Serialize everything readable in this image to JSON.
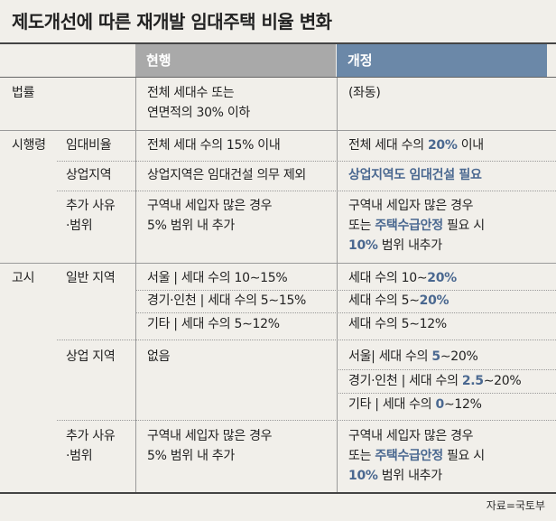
{
  "title": "제도개선에 따른 재개발 임대주택 비율 변화",
  "header": {
    "current": "현행",
    "revised": "개정"
  },
  "rows": {
    "law": {
      "cat": "법률",
      "cur1": "전체 세대수 또는",
      "cur2": "연면적의 30% 이하",
      "rev": "(좌동)"
    },
    "decree": {
      "cat": "시행령",
      "ratio": {
        "sub": "임대비율",
        "cur": "전체 세대 수의 15% 이내",
        "rev_a": "전체 세대 수의 ",
        "rev_b": "20%",
        "rev_c": " 이내"
      },
      "commercial": {
        "sub": "상업지역",
        "cur": "상업지역은 임대건설 의무 제외",
        "rev": "상업지역도 임대건설 필요"
      },
      "extra": {
        "sub1": "추가 사유",
        "sub2": "·범위",
        "cur1": "구역내 세입자 많은 경우",
        "cur2": "5% 범위 내 추가",
        "rev1": "구역내 세입자 많은 경우",
        "rev2a": "또는 ",
        "rev2b": "주택수급안정",
        "rev2c": " 필요 시",
        "rev3a": "10%",
        "rev3b": " 범위 내추가"
      }
    },
    "notice": {
      "cat": "고시",
      "general": {
        "sub": "일반 지역",
        "cur": [
          "서울 | 세대 수의 10∼15%",
          "경기·인천 | 세대 수의  5∼15%",
          "기타 | 세대 수의  5∼12%"
        ],
        "rev1a": "세대 수의 10∼",
        "rev1b": "20%",
        "rev2a": "세대 수의  5∼",
        "rev2b": "20%",
        "rev3": "세대 수의  5∼12%"
      },
      "commercial": {
        "sub": "상업 지역",
        "cur": "없음",
        "rev1a": "서울| 세대 수의 ",
        "rev1b": "5",
        "rev1c": "∼20%",
        "rev2a": "경기·인천 | 세대 수의  ",
        "rev2b": "2.5",
        "rev2c": "∼20%",
        "rev3a": "기타 | 세대 수의  ",
        "rev3b": "0",
        "rev3c": "∼12%"
      },
      "extra": {
        "sub1": "추가 사유",
        "sub2": "·범위",
        "cur1": "구역내 세입자 많은 경우",
        "cur2": "5% 범위 내 추가",
        "rev1": "구역내 세입자 많은 경우",
        "rev2a": "또는 ",
        "rev2b": "주택수급안정",
        "rev2c": " 필요 시",
        "rev3a": "10%",
        "rev3b": " 범위 내추가"
      }
    }
  },
  "source": "자료=국토부",
  "colors": {
    "header_current": "#a9a9a9",
    "header_revised": "#6b88a8",
    "highlight": "#4a6890",
    "background": "#f1efea"
  }
}
